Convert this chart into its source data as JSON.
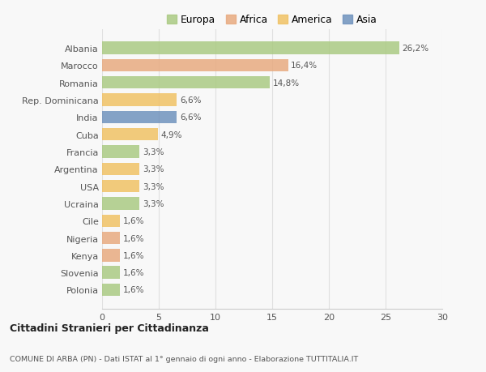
{
  "countries": [
    "Albania",
    "Marocco",
    "Romania",
    "Rep. Dominicana",
    "India",
    "Cuba",
    "Francia",
    "Argentina",
    "USA",
    "Ucraina",
    "Cile",
    "Nigeria",
    "Kenya",
    "Slovenia",
    "Polonia"
  ],
  "values": [
    26.2,
    16.4,
    14.8,
    6.6,
    6.6,
    4.9,
    3.3,
    3.3,
    3.3,
    3.3,
    1.6,
    1.6,
    1.6,
    1.6,
    1.6
  ],
  "labels": [
    "26,2%",
    "16,4%",
    "14,8%",
    "6,6%",
    "6,6%",
    "4,9%",
    "3,3%",
    "3,3%",
    "3,3%",
    "3,3%",
    "1,6%",
    "1,6%",
    "1,6%",
    "1,6%",
    "1,6%"
  ],
  "colors": [
    "#a8c97f",
    "#e8a87c",
    "#a8c97f",
    "#f0c060",
    "#6b8fbb",
    "#f0c060",
    "#a8c97f",
    "#f0c060",
    "#f0c060",
    "#a8c97f",
    "#f0c060",
    "#e8a87c",
    "#e8a87c",
    "#a8c97f",
    "#a8c97f"
  ],
  "legend_labels": [
    "Europa",
    "Africa",
    "America",
    "Asia"
  ],
  "legend_colors": [
    "#a8c97f",
    "#e8a87c",
    "#f0c060",
    "#6b8fbb"
  ],
  "title": "Cittadini Stranieri per Cittadinanza",
  "subtitle": "COMUNE DI ARBA (PN) - Dati ISTAT al 1° gennaio di ogni anno - Elaborazione TUTTITALIA.IT",
  "xlim": [
    0,
    30
  ],
  "xticks": [
    0,
    5,
    10,
    15,
    20,
    25,
    30
  ],
  "background_color": "#f8f8f8",
  "grid_color": "#e0e0e0",
  "bar_height": 0.72
}
